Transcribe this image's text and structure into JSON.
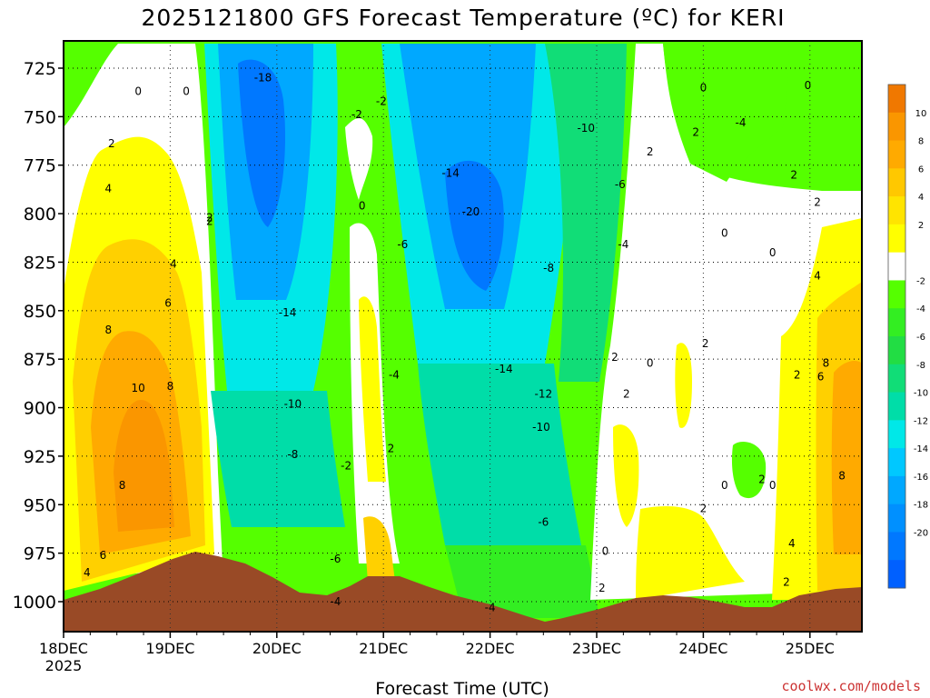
{
  "chart_data": {
    "type": "heatmap",
    "title": "2025121800 GFS Forecast Temperature (ºC) for KERI",
    "xlabel": "Forecast Time (UTC)",
    "ylabel": "",
    "credit": "coolwx.com/models",
    "x_ticks": [
      "18DEC",
      "19DEC",
      "20DEC",
      "21DEC",
      "22DEC",
      "23DEC",
      "24DEC",
      "25DEC"
    ],
    "x_year": "2025",
    "y_ticks": [
      "725",
      "750",
      "775",
      "800",
      "825",
      "850",
      "875",
      "900",
      "925",
      "950",
      "975",
      "1000"
    ],
    "y_levels": [
      725,
      750,
      775,
      800,
      825,
      850,
      875,
      900,
      925,
      950,
      975,
      1000
    ],
    "x_range_days": [
      0,
      7.5
    ],
    "y_range_hpa": [
      712,
      1015
    ],
    "colorbar": {
      "ticks": [
        "10",
        "8",
        "6",
        "4",
        "2",
        "-2",
        "-4",
        "-6",
        "-8",
        "-10",
        "-12",
        "-14",
        "-16",
        "-18",
        "-20"
      ],
      "colors": [
        "#f07800",
        "#fa9600",
        "#ffaa00",
        "#ffc800",
        "#ffe400",
        "#ffff00",
        "#ffffff",
        "#55ff00",
        "#33ee22",
        "#22dd44",
        "#11dd77",
        "#00dda8",
        "#00e8e8",
        "#00c8ff",
        "#00a8ff",
        "#0090ff",
        "#0078ff",
        "#0060ff"
      ]
    },
    "contour_labels": [
      {
        "text": "0",
        "day": 0.7,
        "p": 737
      },
      {
        "text": "0",
        "day": 1.15,
        "p": 737
      },
      {
        "text": "2",
        "day": 0.45,
        "p": 764
      },
      {
        "text": "4",
        "day": 0.42,
        "p": 787
      },
      {
        "text": "4",
        "day": 1.03,
        "p": 826
      },
      {
        "text": "6",
        "day": 0.98,
        "p": 846
      },
      {
        "text": "8",
        "day": 0.42,
        "p": 860
      },
      {
        "text": "10",
        "day": 0.7,
        "p": 890
      },
      {
        "text": "8",
        "day": 1.0,
        "p": 889
      },
      {
        "text": "8",
        "day": 0.55,
        "p": 940
      },
      {
        "text": "6",
        "day": 0.37,
        "p": 976
      },
      {
        "text": "4",
        "day": 0.22,
        "p": 985
      },
      {
        "text": "2",
        "day": 1.37,
        "p": 802
      },
      {
        "text": "-18",
        "day": 1.87,
        "p": 730
      },
      {
        "text": "-14",
        "day": 2.1,
        "p": 851
      },
      {
        "text": "-10",
        "day": 2.15,
        "p": 898
      },
      {
        "text": "-8",
        "day": 2.15,
        "p": 924
      },
      {
        "text": "-6",
        "day": 2.55,
        "p": 978
      },
      {
        "text": "-4",
        "day": 2.55,
        "p": 1000
      },
      {
        "text": "-2",
        "day": 2.65,
        "p": 930
      },
      {
        "text": "-2",
        "day": 2.75,
        "p": 749
      },
      {
        "text": "-2",
        "day": 2.98,
        "p": 742
      },
      {
        "text": "0",
        "day": 2.8,
        "p": 796
      },
      {
        "text": "-4",
        "day": 3.1,
        "p": 883
      },
      {
        "text": "2",
        "day": 3.07,
        "p": 921
      },
      {
        "text": "-6",
        "day": 3.18,
        "p": 816
      },
      {
        "text": "-14",
        "day": 3.63,
        "p": 779
      },
      {
        "text": "-20",
        "day": 3.82,
        "p": 799
      },
      {
        "text": "-14",
        "day": 4.13,
        "p": 880
      },
      {
        "text": "-10",
        "day": 4.48,
        "p": 910
      },
      {
        "text": "-12",
        "day": 4.5,
        "p": 893
      },
      {
        "text": "-10",
        "day": 4.9,
        "p": 756
      },
      {
        "text": "-8",
        "day": 4.55,
        "p": 828
      },
      {
        "text": "-6",
        "day": 4.5,
        "p": 959
      },
      {
        "text": "-4",
        "day": 4.0,
        "p": 1003
      },
      {
        "text": "-6",
        "day": 5.22,
        "p": 785
      },
      {
        "text": "-4",
        "day": 5.25,
        "p": 816
      },
      {
        "text": "2",
        "day": 5.5,
        "p": 768
      },
      {
        "text": "0",
        "day": 6.0,
        "p": 735
      },
      {
        "text": "2",
        "day": 5.93,
        "p": 758
      },
      {
        "text": "-4",
        "day": 6.35,
        "p": 753
      },
      {
        "text": "0",
        "day": 6.2,
        "p": 810
      },
      {
        "text": "0",
        "day": 6.65,
        "p": 820
      },
      {
        "text": "2",
        "day": 6.85,
        "p": 780
      },
      {
        "text": "0",
        "day": 6.98,
        "p": 734
      },
      {
        "text": "2",
        "day": 7.07,
        "p": 794
      },
      {
        "text": "4",
        "day": 7.07,
        "p": 832
      },
      {
        "text": "2",
        "day": 5.17,
        "p": 874
      },
      {
        "text": "0",
        "day": 5.5,
        "p": 877
      },
      {
        "text": "2",
        "day": 5.28,
        "p": 893
      },
      {
        "text": "2",
        "day": 6.02,
        "p": 867
      },
      {
        "text": "2",
        "day": 6.55,
        "p": 937
      },
      {
        "text": "0",
        "day": 6.2,
        "p": 940
      },
      {
        "text": "0",
        "day": 6.65,
        "p": 940
      },
      {
        "text": "2",
        "day": 6.0,
        "p": 952
      },
      {
        "text": "0",
        "day": 5.08,
        "p": 974
      },
      {
        "text": "2",
        "day": 5.05,
        "p": 993
      },
      {
        "text": "2",
        "day": 6.88,
        "p": 883
      },
      {
        "text": "6",
        "day": 7.1,
        "p": 884
      },
      {
        "text": "8",
        "day": 7.15,
        "p": 877
      },
      {
        "text": "8",
        "day": 7.3,
        "p": 935
      },
      {
        "text": "4",
        "day": 6.83,
        "p": 970
      },
      {
        "text": "2",
        "day": 6.78,
        "p": 990
      },
      {
        "text": "2",
        "day": 1.37,
        "p": 804
      }
    ]
  }
}
